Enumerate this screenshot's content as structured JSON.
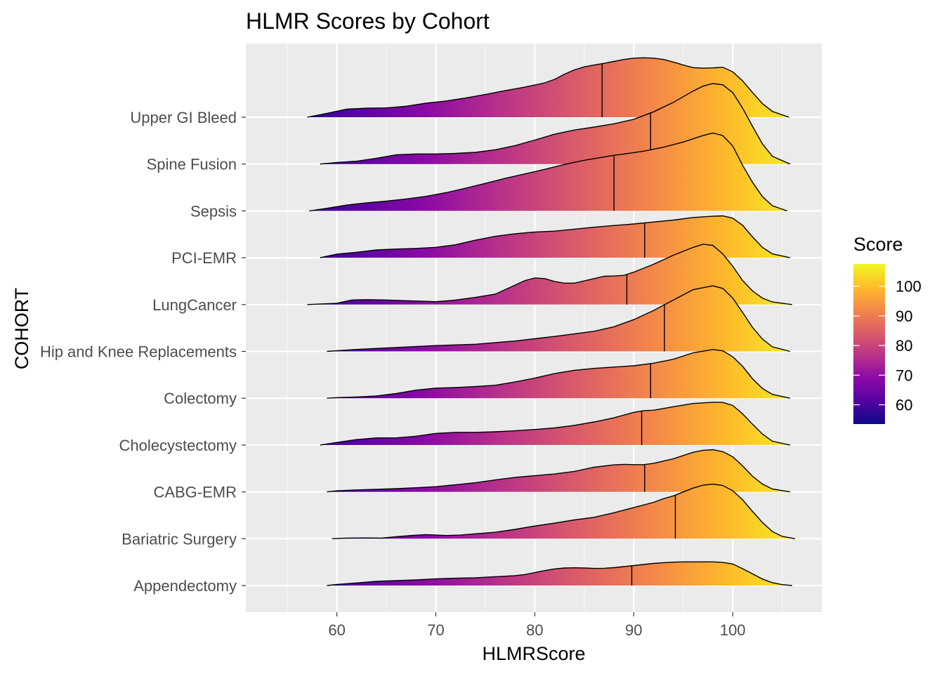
{
  "chart_data": {
    "type": "ridgeline-density",
    "title": "HLMR Scores by Cohort",
    "xlabel": "HLMRScore",
    "ylabel": "COHORT",
    "xlim": [
      50.8,
      109
    ],
    "x_ticks": [
      60,
      70,
      80,
      90,
      100
    ],
    "grid": true,
    "legend": {
      "title": "Score",
      "position": "right",
      "ticks": [
        60,
        70,
        80,
        90,
        100
      ],
      "range": [
        53.5,
        107.5
      ],
      "colormap": "plasma",
      "stops": [
        "#0d0887",
        "#5402a3",
        "#8b0aa5",
        "#b93289",
        "#db5c68",
        "#f48849",
        "#febc2a",
        "#f0f921"
      ]
    },
    "median_line": true,
    "series": [
      {
        "name": "Appendectomy",
        "median": 89.8,
        "density_x": [
          59,
          60,
          62,
          64,
          66,
          68,
          70,
          72,
          74,
          76,
          78,
          79,
          80,
          81,
          82,
          83,
          84,
          85,
          86,
          87,
          88,
          89,
          90,
          91,
          92,
          93,
          94,
          95,
          96,
          97,
          98,
          99,
          100,
          101,
          102,
          103,
          104,
          105,
          106
        ],
        "density_y": [
          0,
          0.08,
          0.2,
          0.33,
          0.38,
          0.44,
          0.52,
          0.56,
          0.6,
          0.68,
          0.76,
          0.85,
          1.0,
          1.15,
          1.28,
          1.35,
          1.37,
          1.35,
          1.32,
          1.33,
          1.38,
          1.46,
          1.54,
          1.62,
          1.7,
          1.76,
          1.8,
          1.82,
          1.82,
          1.82,
          1.82,
          1.78,
          1.66,
          1.3,
          0.9,
          0.5,
          0.22,
          0.07,
          0
        ]
      },
      {
        "name": "Bariatric Surgery",
        "median": 94.2,
        "density_x": [
          59.5,
          61,
          63,
          64.5,
          66,
          67.5,
          69,
          70,
          71,
          72.5,
          74,
          76,
          78,
          80,
          82,
          84,
          86,
          88,
          90,
          92,
          93,
          94,
          95,
          96,
          97,
          98,
          99,
          100,
          101,
          102,
          103,
          104,
          105,
          106.3
        ],
        "density_y": [
          0,
          0.05,
          0.06,
          0.05,
          0.15,
          0.25,
          0.32,
          0.28,
          0.25,
          0.28,
          0.38,
          0.5,
          0.72,
          0.98,
          1.2,
          1.45,
          1.65,
          2.0,
          2.4,
          2.8,
          3.08,
          3.3,
          3.6,
          3.9,
          4.12,
          4.2,
          4.1,
          3.7,
          3.0,
          2.1,
          1.25,
          0.55,
          0.18,
          0
        ]
      },
      {
        "name": "CABG-EMR",
        "median": 91.1,
        "density_x": [
          59,
          60,
          62,
          64,
          66,
          68,
          70,
          72,
          74,
          76,
          78,
          80,
          82,
          84,
          86,
          88,
          89,
          90,
          91,
          92,
          94,
          96,
          97,
          98,
          99,
          100,
          101,
          102,
          103,
          104,
          105.8
        ],
        "density_y": [
          0,
          0.08,
          0.15,
          0.2,
          0.25,
          0.32,
          0.4,
          0.55,
          0.7,
          0.92,
          1.12,
          1.25,
          1.38,
          1.58,
          1.9,
          2.08,
          2.12,
          2.1,
          2.1,
          2.2,
          2.55,
          3.05,
          3.2,
          3.25,
          3.1,
          2.7,
          2.0,
          1.2,
          0.6,
          0.22,
          0
        ]
      },
      {
        "name": "Cholecystectomy",
        "median": 90.8,
        "density_x": [
          58.3,
          60,
          62,
          64,
          66,
          68,
          70,
          72,
          74,
          76,
          78,
          80,
          82,
          84,
          86,
          88,
          90,
          91,
          92,
          94,
          96,
          98,
          99,
          100,
          101,
          102,
          103,
          104,
          105.8
        ],
        "density_y": [
          0,
          0.2,
          0.42,
          0.55,
          0.55,
          0.68,
          0.9,
          0.98,
          0.98,
          1.02,
          1.1,
          1.2,
          1.32,
          1.52,
          1.78,
          2.1,
          2.52,
          2.65,
          2.68,
          2.95,
          3.2,
          3.3,
          3.28,
          3.05,
          2.4,
          1.6,
          0.85,
          0.3,
          0
        ]
      },
      {
        "name": "Colectomy",
        "median": 91.7,
        "density_x": [
          59,
          60,
          62,
          64,
          66,
          68,
          70,
          72,
          74,
          76,
          78,
          80,
          82,
          84,
          86,
          88,
          90,
          92,
          94,
          96,
          98,
          99,
          100,
          101,
          102,
          103,
          104,
          105.8
        ],
        "density_y": [
          0,
          0.05,
          0.1,
          0.18,
          0.36,
          0.62,
          0.78,
          0.82,
          0.9,
          1.0,
          1.25,
          1.55,
          1.9,
          2.15,
          2.3,
          2.4,
          2.5,
          2.7,
          3.0,
          3.5,
          3.75,
          3.65,
          3.2,
          2.45,
          1.5,
          0.75,
          0.3,
          0
        ]
      },
      {
        "name": "Hip and Knee Replacements",
        "median": 93.1,
        "density_x": [
          59,
          62,
          66,
          70,
          74,
          78,
          82,
          86,
          88,
          90,
          92,
          93,
          94,
          96,
          98,
          99,
          100,
          101,
          102,
          103,
          104,
          105.8
        ],
        "density_y": [
          0,
          0.15,
          0.3,
          0.45,
          0.55,
          0.8,
          1.15,
          1.55,
          1.9,
          2.45,
          3.15,
          3.55,
          3.95,
          4.75,
          5.05,
          4.85,
          4.1,
          3.0,
          1.85,
          0.95,
          0.35,
          0
        ]
      },
      {
        "name": "LungCancer",
        "median": 89.3,
        "density_x": [
          57,
          60,
          61.5,
          63,
          65,
          67,
          69,
          70,
          71,
          72,
          74,
          76,
          78,
          79,
          80,
          81,
          82,
          83,
          84,
          86,
          87,
          88,
          89,
          90,
          91,
          92,
          94,
          96,
          97,
          98,
          99,
          100,
          101,
          102,
          103,
          104,
          106
        ],
        "density_y": [
          0,
          0.1,
          0.35,
          0.38,
          0.35,
          0.3,
          0.25,
          0.22,
          0.28,
          0.35,
          0.55,
          0.8,
          1.5,
          1.85,
          2.05,
          2.0,
          1.78,
          1.65,
          1.65,
          2.0,
          2.18,
          2.2,
          2.25,
          2.5,
          2.8,
          3.1,
          3.8,
          4.4,
          4.65,
          4.55,
          3.9,
          2.95,
          1.85,
          1.05,
          0.5,
          0.2,
          0
        ]
      },
      {
        "name": "PCI-EMR",
        "median": 91.1,
        "density_x": [
          58.3,
          60,
          62,
          64,
          66,
          68,
          70,
          72,
          74,
          76,
          78,
          80,
          82,
          84,
          86,
          88,
          90,
          92,
          94,
          96,
          98,
          99,
          100,
          101,
          102,
          103,
          104,
          105.8
        ],
        "density_y": [
          0,
          0.28,
          0.42,
          0.6,
          0.67,
          0.72,
          0.8,
          1.0,
          1.35,
          1.65,
          1.85,
          1.98,
          2.05,
          2.2,
          2.35,
          2.48,
          2.6,
          2.75,
          2.9,
          3.1,
          3.2,
          3.22,
          3.05,
          2.5,
          1.6,
          0.8,
          0.3,
          0
        ]
      },
      {
        "name": "Sepsis",
        "median": 88.0,
        "density_x": [
          57.2,
          59,
          61,
          63,
          65,
          67,
          69,
          71,
          73,
          75,
          77,
          79,
          81,
          83,
          85,
          87,
          88,
          89,
          91,
          93,
          95,
          97,
          98,
          99,
          100,
          101,
          102,
          103,
          104,
          105.5
        ],
        "density_y": [
          0,
          0.2,
          0.45,
          0.62,
          0.75,
          0.92,
          1.12,
          1.4,
          1.75,
          2.12,
          2.5,
          2.85,
          3.2,
          3.58,
          3.9,
          4.15,
          4.28,
          4.38,
          4.6,
          4.9,
          5.3,
          5.8,
          6.0,
          5.8,
          5.0,
          3.5,
          2.2,
          1.1,
          0.4,
          0
        ]
      },
      {
        "name": "Spine Fusion",
        "median": 91.7,
        "density_x": [
          58.3,
          60,
          62,
          64,
          66,
          68,
          70,
          72,
          74,
          76,
          78,
          80,
          82,
          84,
          86,
          88,
          90,
          92,
          94,
          96,
          97,
          98,
          99,
          100,
          101,
          102,
          103,
          104,
          105.8
        ],
        "density_y": [
          0,
          0.12,
          0.22,
          0.45,
          0.72,
          0.78,
          0.78,
          0.82,
          0.9,
          1.1,
          1.42,
          1.85,
          2.3,
          2.62,
          2.85,
          3.1,
          3.45,
          4.02,
          4.75,
          5.62,
          6.0,
          6.2,
          6.1,
          5.5,
          4.3,
          2.9,
          1.55,
          0.6,
          0
        ]
      },
      {
        "name": "Upper GI Bleed",
        "median": 86.8,
        "density_x": [
          57,
          59,
          61,
          63,
          65,
          67,
          69,
          71,
          73,
          75,
          77,
          79,
          80,
          81,
          82,
          83,
          84,
          85,
          86,
          87,
          88,
          89,
          90,
          91,
          92,
          93,
          94,
          95,
          96,
          97,
          98,
          99,
          100,
          101,
          102,
          103,
          104,
          105.7
        ],
        "density_y": [
          0,
          0.3,
          0.62,
          0.7,
          0.72,
          0.85,
          1.08,
          1.25,
          1.48,
          1.75,
          2.05,
          2.32,
          2.48,
          2.65,
          2.92,
          3.32,
          3.65,
          3.88,
          4.02,
          4.15,
          4.3,
          4.45,
          4.55,
          4.58,
          4.55,
          4.45,
          4.25,
          4.02,
          3.82,
          3.78,
          3.8,
          3.85,
          3.5,
          2.8,
          1.9,
          1.05,
          0.45,
          0
        ]
      }
    ]
  }
}
